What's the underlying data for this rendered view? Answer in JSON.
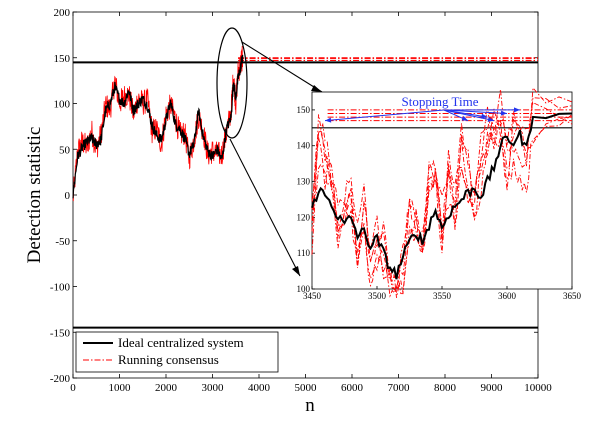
{
  "colors": {
    "ideal": "#000000",
    "consensus": "#ff0000",
    "annotation": "#2233ee"
  },
  "chart_data": [
    {
      "id": "main",
      "type": "line",
      "xlabel": "n",
      "ylabel": "Detection statistic",
      "xlim": [
        0,
        10000
      ],
      "ylim": [
        -200,
        200
      ],
      "xticks": [
        0,
        1000,
        2000,
        3000,
        4000,
        5000,
        6000,
        7000,
        8000,
        9000,
        10000
      ],
      "yticks": [
        -200,
        -150,
        -100,
        -50,
        0,
        50,
        100,
        150,
        200
      ],
      "thresholds": {
        "upper": 145,
        "lower": -145,
        "consensus_upper": [
          147,
          149,
          150
        ]
      },
      "series": [
        {
          "name": "Ideal centralized system",
          "style": "solid",
          "x": [
            0,
            100,
            200,
            300,
            400,
            500,
            600,
            700,
            800,
            900,
            1000,
            1100,
            1200,
            1300,
            1400,
            1500,
            1600,
            1700,
            1800,
            1900,
            2000,
            2100,
            2200,
            2300,
            2400,
            2500,
            2600,
            2700,
            2800,
            2900,
            3000,
            3100,
            3200,
            3300,
            3400,
            3450,
            3500,
            3550,
            3600,
            3620,
            3650
          ],
          "y": [
            0,
            42,
            52,
            58,
            62,
            55,
            60,
            92,
            100,
            118,
            105,
            100,
            115,
            92,
            100,
            105,
            98,
            76,
            65,
            60,
            82,
            102,
            78,
            72,
            62,
            45,
            55,
            92,
            64,
            48,
            42,
            50,
            38,
            72,
            85,
            124,
            106,
            128,
            138,
            145,
            149
          ]
        },
        {
          "name": "Running consensus",
          "style": "dashdot",
          "x": [
            0,
            100,
            200,
            300,
            400,
            500,
            600,
            700,
            800,
            900,
            1000,
            1100,
            1200,
            1300,
            1400,
            1500,
            1600,
            1700,
            1800,
            1900,
            2000,
            2100,
            2200,
            2300,
            2400,
            2500,
            2600,
            2700,
            2800,
            2900,
            3000,
            3100,
            3200,
            3300,
            3400,
            3450,
            3500,
            3550,
            3600,
            3620,
            3650
          ],
          "y": [
            -5,
            48,
            58,
            52,
            70,
            50,
            66,
            98,
            94,
            125,
            100,
            108,
            110,
            88,
            106,
            100,
            104,
            70,
            72,
            55,
            88,
            98,
            84,
            66,
            68,
            40,
            60,
            86,
            70,
            44,
            48,
            45,
            44,
            68,
            92,
            130,
            100,
            134,
            142,
            147,
            150
          ]
        }
      ],
      "legend": {
        "position": "bottom-left",
        "entries": [
          "Ideal centralized system",
          "Running consensus"
        ]
      }
    },
    {
      "id": "inset",
      "type": "line",
      "xlim": [
        3450,
        3650
      ],
      "ylim": [
        100,
        155
      ],
      "xticks": [
        3450,
        3500,
        3550,
        3600,
        3650
      ],
      "yticks": [
        100,
        110,
        120,
        130,
        140,
        150
      ],
      "thresholds": {
        "ideal": 145,
        "consensus": [
          147,
          148,
          149,
          150
        ]
      },
      "series": [
        {
          "name": "Ideal centralized system",
          "style": "solid",
          "x": [
            3450,
            3455,
            3460,
            3465,
            3470,
            3475,
            3480,
            3485,
            3490,
            3495,
            3500,
            3505,
            3510,
            3515,
            3520,
            3525,
            3530,
            3535,
            3540,
            3545,
            3550,
            3555,
            3560,
            3565,
            3570,
            3575,
            3580,
            3585,
            3590,
            3595,
            3600,
            3605,
            3610,
            3615,
            3620,
            3650
          ],
          "y": [
            122,
            128,
            126,
            124,
            120,
            118,
            120,
            115,
            116,
            112,
            114,
            110,
            106,
            104,
            109,
            113,
            116,
            113,
            118,
            122,
            117,
            121,
            123,
            125,
            127,
            128,
            126,
            130,
            134,
            140,
            142,
            141,
            143,
            139,
            149,
            149
          ]
        },
        {
          "name": "Running consensus",
          "style": "dashdot",
          "x": [
            3450,
            3455,
            3460,
            3465,
            3470,
            3475,
            3480,
            3485,
            3490,
            3495,
            3500,
            3505,
            3510,
            3515,
            3520,
            3525,
            3530,
            3535,
            3540,
            3545,
            3550,
            3555,
            3560,
            3565,
            3570,
            3575,
            3580,
            3585,
            3590,
            3595,
            3600,
            3605,
            3610,
            3615,
            3620,
            3650
          ],
          "y": [
            118,
            142,
            134,
            128,
            114,
            126,
            122,
            110,
            118,
            108,
            116,
            112,
            102,
            100,
            106,
            118,
            122,
            114,
            128,
            132,
            116,
            130,
            126,
            138,
            132,
            124,
            132,
            142,
            146,
            150,
            138,
            144,
            140,
            136,
            148,
            148
          ]
        }
      ],
      "annotation": {
        "text": "Stopping Time",
        "target_x": [
          3460,
          3570,
          3585,
          3590,
          3600,
          3610
        ],
        "target_y": [
          147,
          147,
          148,
          147,
          149,
          150
        ]
      }
    }
  ]
}
